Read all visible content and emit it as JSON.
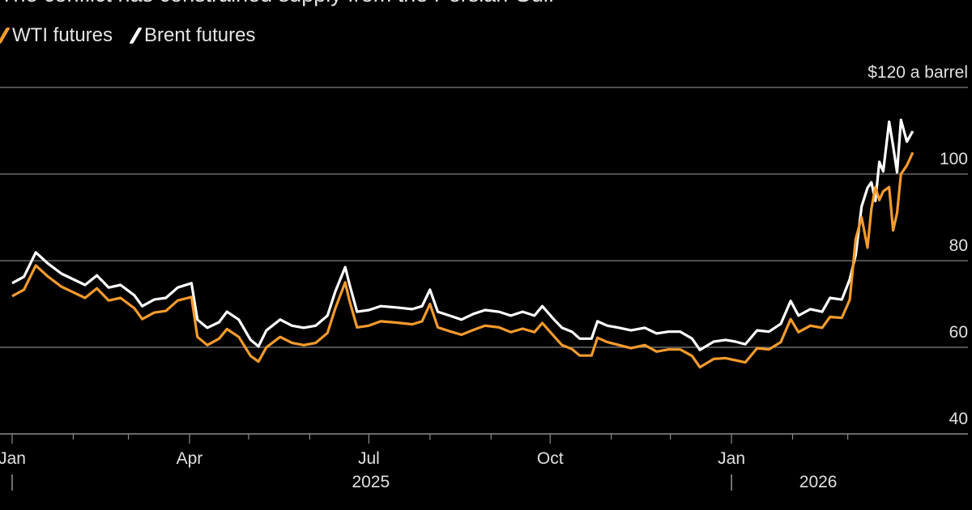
{
  "chart_data": {
    "type": "line",
    "title": "The conflict has constrained supply from the Persian Gulf",
    "x_unit": "day index starting 2025-01-01",
    "y_unit_label": "$120 a barrel",
    "ylim": [
      40,
      120
    ],
    "y_ticks": [
      {
        "value": 120,
        "label": "$120 a barrel"
      },
      {
        "value": 100,
        "label": "100"
      },
      {
        "value": 80,
        "label": "80"
      },
      {
        "value": 60,
        "label": "60"
      },
      {
        "value": 40,
        "label": "40"
      }
    ],
    "x_ticks": [
      {
        "day": 1,
        "label": "Jan"
      },
      {
        "day": 32
      },
      {
        "day": 60
      },
      {
        "day": 91,
        "label": "Apr"
      },
      {
        "day": 121
      },
      {
        "day": 152
      },
      {
        "day": 182,
        "label": "Jul"
      },
      {
        "day": 213
      },
      {
        "day": 244
      },
      {
        "day": 274,
        "label": "Oct"
      },
      {
        "day": 305
      },
      {
        "day": 335
      },
      {
        "day": 366,
        "label": "Jan"
      },
      {
        "day": 397
      },
      {
        "day": 425
      }
    ],
    "year_labels": [
      {
        "day": 183,
        "label": "2025"
      },
      {
        "day": 410,
        "label": "2026"
      }
    ],
    "year_separators": [
      1,
      366
    ],
    "separator_glyph": "|",
    "grid": true,
    "legend_position": "top-left",
    "days": [
      1,
      7,
      13,
      19,
      26,
      32,
      38,
      44,
      50,
      56,
      63,
      67,
      73,
      79,
      85,
      92,
      95,
      100,
      106,
      110,
      116,
      122,
      126,
      130,
      137,
      143,
      149,
      155,
      161,
      165,
      170,
      172,
      176,
      182,
      188,
      196,
      204,
      209,
      213,
      217,
      223,
      229,
      235,
      241,
      248,
      254,
      260,
      266,
      270,
      276,
      280,
      285,
      289,
      295,
      298,
      303,
      309,
      315,
      322,
      328,
      334,
      340,
      346,
      350,
      357,
      363,
      368,
      373,
      379,
      385,
      391,
      396,
      400,
      406,
      412,
      416,
      422,
      426,
      429,
      432,
      435,
      437,
      439,
      441,
      443,
      446,
      448,
      450,
      452,
      455,
      458
    ],
    "series": [
      {
        "name": "WTI futures",
        "color": "#f59b2d",
        "values": [
          71.8,
          73.3,
          78.9,
          76.4,
          74.0,
          72.7,
          71.4,
          73.6,
          70.8,
          71.4,
          69.0,
          66.5,
          68.0,
          68.4,
          70.8,
          71.6,
          62.4,
          60.5,
          62.0,
          64.2,
          62.4,
          58.0,
          56.7,
          60.0,
          62.4,
          61.0,
          60.5,
          61.0,
          63.3,
          69.0,
          75.0,
          71.0,
          64.6,
          65.0,
          66.0,
          65.7,
          65.3,
          66.0,
          70.0,
          64.6,
          63.7,
          62.9,
          64.0,
          65.0,
          64.6,
          63.5,
          64.3,
          63.5,
          65.6,
          62.5,
          60.5,
          59.6,
          58.1,
          58.1,
          62.2,
          61.2,
          60.5,
          59.8,
          60.5,
          59.0,
          59.5,
          59.5,
          58.0,
          55.4,
          57.3,
          57.5,
          57.0,
          56.5,
          59.8,
          59.5,
          61.2,
          66.5,
          63.5,
          65.0,
          64.5,
          67.0,
          66.8,
          71.0,
          85.0,
          90.0,
          83.0,
          92.0,
          97.0,
          94.0,
          96.0,
          97.0,
          87.0,
          91.0,
          100.0,
          102.0,
          105.0
        ]
      },
      {
        "name": "Brent futures",
        "color": "#ffffff",
        "values": [
          74.8,
          76.3,
          81.9,
          79.4,
          77.0,
          75.7,
          74.4,
          76.6,
          73.8,
          74.4,
          72.0,
          69.5,
          71.0,
          71.4,
          73.8,
          74.8,
          66.4,
          64.5,
          65.8,
          68.2,
          66.4,
          61.7,
          60.2,
          63.9,
          66.4,
          65.0,
          64.5,
          65.0,
          67.3,
          72.9,
          78.5,
          74.8,
          68.2,
          68.6,
          69.5,
          69.2,
          68.8,
          69.5,
          73.3,
          68.2,
          67.3,
          66.4,
          67.7,
          68.6,
          68.2,
          67.3,
          68.2,
          67.3,
          69.5,
          66.4,
          64.5,
          63.6,
          62.0,
          62.0,
          66.0,
          65.0,
          64.5,
          63.9,
          64.5,
          63.2,
          63.6,
          63.6,
          62.0,
          59.4,
          61.3,
          61.7,
          61.3,
          60.7,
          63.9,
          63.6,
          65.4,
          70.7,
          67.3,
          68.8,
          68.2,
          71.4,
          71.0,
          75.7,
          81.3,
          92.5,
          96.8,
          98.1,
          93.8,
          102.8,
          100.6,
          112.1,
          106.5,
          100.4,
          112.5,
          107.5,
          109.9
        ]
      }
    ]
  }
}
